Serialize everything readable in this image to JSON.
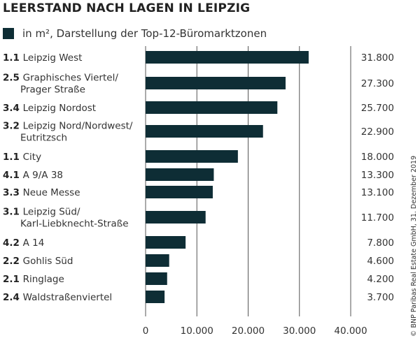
{
  "chart_data": {
    "type": "bar",
    "orientation": "horizontal",
    "title": "LEERSTAND NACH LAGEN IN LEIPZIG",
    "legend": {
      "label": "in m², Darstellung der Top-12-Büromarktzonen",
      "position": "top-left"
    },
    "categories": [
      {
        "code": "1.1",
        "lines": [
          "Leipzig West"
        ]
      },
      {
        "code": "2.5",
        "lines": [
          "Graphisches Viertel/",
          "Prager Straße"
        ]
      },
      {
        "code": "3.4",
        "lines": [
          "Leipzig Nordost"
        ]
      },
      {
        "code": "3.2",
        "lines": [
          "Leipzig Nord/Nordwest/",
          "Eutritzsch"
        ]
      },
      {
        "code": "1.1",
        "lines": [
          "City"
        ]
      },
      {
        "code": "4.1",
        "lines": [
          "A 9/A 38"
        ]
      },
      {
        "code": "3.3",
        "lines": [
          "Neue Messe"
        ]
      },
      {
        "code": "3.1",
        "lines": [
          "Leipzig Süd/",
          "Karl-Liebknecht-Straße"
        ]
      },
      {
        "code": "4.2",
        "lines": [
          "A 14"
        ]
      },
      {
        "code": "2.2",
        "lines": [
          "Gohlis Süd"
        ]
      },
      {
        "code": "2.1",
        "lines": [
          "Ringlage"
        ]
      },
      {
        "code": "2.4",
        "lines": [
          "Waldstraßenviertel"
        ]
      }
    ],
    "values": [
      31800,
      27300,
      25700,
      22900,
      18000,
      13300,
      13100,
      11700,
      7800,
      4600,
      4200,
      3700
    ],
    "value_labels": [
      "31.800",
      "27.300",
      "25.700",
      "22.900",
      "18.000",
      "13.300",
      "13.100",
      "11.700",
      "7.800",
      "4.600",
      "4.200",
      "3.700"
    ],
    "xlim": [
      0,
      40000
    ],
    "xticks": [
      0,
      10000,
      20000,
      30000,
      40000
    ],
    "xtick_labels": [
      "0",
      "10.000",
      "20.000",
      "30.000",
      "40.000"
    ],
    "grid": "vertical",
    "bar_color": "#0e2d35",
    "source": "© BNP Paribas Real Estate GmbH, 31. Dezember 2019"
  }
}
